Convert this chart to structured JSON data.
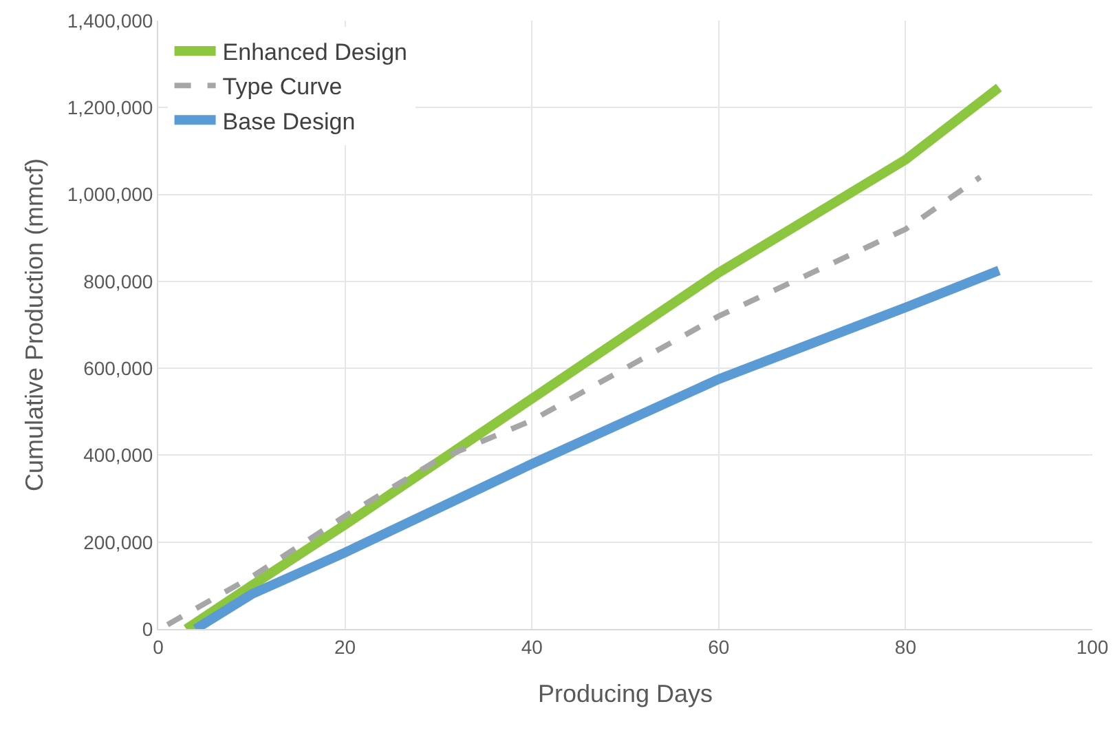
{
  "chart_data": {
    "type": "line",
    "xlabel": "Producing Days",
    "ylabel": "Cumulative Production (mmcf)",
    "xlim": [
      0,
      100
    ],
    "xticks": [
      0,
      20,
      40,
      60,
      80,
      100
    ],
    "ylim": [
      0,
      1400000
    ],
    "yticks": [
      {
        "value": 0,
        "label": "0"
      },
      {
        "value": 200000,
        "label": "200,000"
      },
      {
        "value": 400000,
        "label": "400,000"
      },
      {
        "value": 600000,
        "label": "600,000"
      },
      {
        "value": 800000,
        "label": "800,000"
      },
      {
        "value": 1000000,
        "label": "1,000,000"
      },
      {
        "value": 1200000,
        "label": "1,200,000"
      },
      {
        "value": 1400000,
        "label": "1,400,000"
      }
    ],
    "grid": true,
    "legend": "top left",
    "marker": "none",
    "series": [
      {
        "name": "Enhanced Design",
        "color": "#8cc63f",
        "line_style": "solid",
        "x": [
          3,
          10,
          20,
          40,
          60,
          80,
          90
        ],
        "values": [
          0,
          100000,
          240000,
          530000,
          820000,
          1080000,
          1246000
        ]
      },
      {
        "name": "Type Curve",
        "color": "#a6a6a6",
        "line_style": "dashed",
        "x": [
          1,
          10,
          20,
          30,
          40,
          60,
          80,
          88
        ],
        "values": [
          10000,
          120000,
          260000,
          390000,
          480000,
          720000,
          920000,
          1040000
        ]
      },
      {
        "name": "Base Design",
        "color": "#5b9bd5",
        "line_style": "solid",
        "x": [
          4,
          10,
          20,
          40,
          60,
          80,
          90
        ],
        "values": [
          0,
          80000,
          176000,
          380000,
          575000,
          740000,
          825000
        ]
      }
    ]
  }
}
